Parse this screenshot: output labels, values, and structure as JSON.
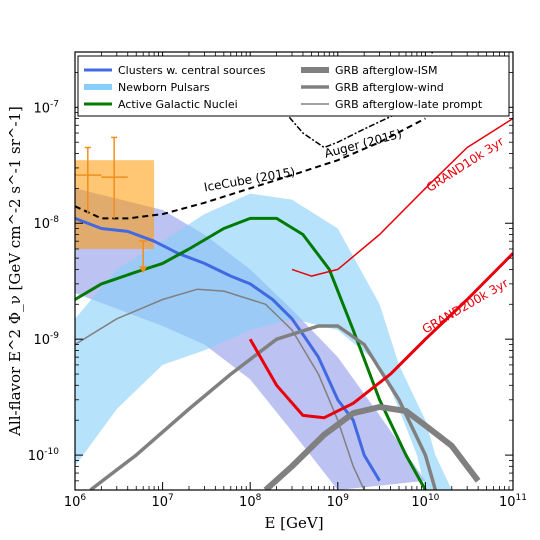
{
  "chart_data": {
    "type": "line",
    "xlabel": "E [GeV]",
    "ylabel": "All-flavor E^2 Φ_ν [GeV cm^-2 s^-1 sr^-1]",
    "x_scale": "log",
    "y_scale": "log",
    "xlim": [
      1000000,
      100000000000
    ],
    "ylim": [
      5e-11,
      3e-07
    ],
    "legend_position": "top",
    "x_tick_labels": [
      "10^6",
      "10^7",
      "10^8",
      "10^9",
      "10^10",
      "10^11"
    ],
    "y_tick_labels": [
      "10^-10",
      "10^-9",
      "10^-8",
      "10^-7"
    ],
    "legend": [
      {
        "name": "Clusters w. central sources",
        "color": "#4169e1",
        "width": 3
      },
      {
        "name": "Newborn Pulsars",
        "color": "#87cefa",
        "width": 6
      },
      {
        "name": "Active Galactic Nuclei",
        "color": "#007a00",
        "width": 3
      },
      {
        "name": "GRB afterglow-ISM",
        "color": "#808080",
        "width": 6
      },
      {
        "name": "GRB afterglow-wind",
        "color": "#808080",
        "width": 3.5
      },
      {
        "name": "GRB afterglow-late prompt",
        "color": "#808080",
        "width": 1.5
      }
    ],
    "bands": [
      {
        "name": "Clusters w. central sources",
        "color": "#6a78e0",
        "opacity": 0.45,
        "upper": [
          [
            1000000,
            2e-08
          ],
          [
            10000000,
            1.3e-08
          ],
          [
            30000000,
            8e-09
          ],
          [
            100000000,
            4e-09
          ],
          [
            300000000,
            1.8e-09
          ],
          [
            1000000000,
            7e-10
          ],
          [
            3000000000,
            2.2e-10
          ],
          [
            10000000000,
            6e-11
          ]
        ],
        "lower": [
          [
            1000000,
            2.5e-09
          ],
          [
            10000000,
            1.3e-09
          ],
          [
            30000000,
            9e-10
          ],
          [
            100000000,
            4.5e-10
          ],
          [
            300000000,
            1.6e-10
          ],
          [
            1000000000,
            5e-11
          ]
        ]
      },
      {
        "name": "Newborn Pulsars",
        "color": "#87cefa",
        "opacity": 0.6,
        "upper": [
          [
            1000000,
            1.5e-09
          ],
          [
            3000000,
            4e-09
          ],
          [
            10000000,
            7e-09
          ],
          [
            30000000,
            1.2e-08
          ],
          [
            100000000,
            1.8e-08
          ],
          [
            300000000,
            1.6e-08
          ],
          [
            1000000000,
            9e-09
          ],
          [
            3000000000,
            2e-09
          ],
          [
            5000000000,
            6e-10
          ],
          [
            10000000000,
            2e-10
          ],
          [
            13000000000,
            1e-10
          ],
          [
            20000000000,
            5e-11
          ]
        ],
        "lower": [
          [
            1000000,
            8e-11
          ],
          [
            3000000,
            2.5e-10
          ],
          [
            10000000,
            6e-10
          ],
          [
            30000000,
            8e-10
          ],
          [
            100000000,
            1.2e-09
          ],
          [
            300000000,
            1.5e-09
          ],
          [
            1000000000,
            1.2e-09
          ],
          [
            3000000000,
            6e-10
          ],
          [
            5000000000,
            2.5e-10
          ],
          [
            8000000000,
            1e-10
          ],
          [
            10000000000,
            5e-11
          ]
        ]
      }
    ],
    "series": [
      {
        "name": "Clusters w. central sources",
        "color": "#4169e1",
        "width": 3,
        "points": [
          [
            1000000,
            1.1e-08
          ],
          [
            2000000,
            9e-09
          ],
          [
            4000000,
            8.5e-09
          ],
          [
            8000000,
            7e-09
          ],
          [
            15000000,
            5.5e-09
          ],
          [
            30000000,
            4.5e-09
          ],
          [
            60000000,
            3.5e-09
          ],
          [
            100000000,
            3e-09
          ],
          [
            180000000,
            2.2e-09
          ],
          [
            300000000,
            1.5e-09
          ],
          [
            400000000,
            1.1e-09
          ],
          [
            600000000,
            7e-10
          ],
          [
            1000000000,
            3e-10
          ],
          [
            1500000000,
            2e-10
          ],
          [
            2000000000,
            1e-10
          ],
          [
            3000000000,
            6e-11
          ]
        ]
      },
      {
        "name": "Active Galactic Nuclei",
        "color": "#007a00",
        "width": 3,
        "points": [
          [
            1000000,
            2.2e-09
          ],
          [
            2000000,
            3e-09
          ],
          [
            5000000,
            3.8e-09
          ],
          [
            10000000,
            4.5e-09
          ],
          [
            20000000,
            6e-09
          ],
          [
            50000000,
            9e-09
          ],
          [
            100000000,
            1.1e-08
          ],
          [
            200000000,
            1.1e-08
          ],
          [
            400000000,
            8e-09
          ],
          [
            800000000,
            4e-09
          ],
          [
            1500000000,
            1.2e-09
          ],
          [
            3000000000,
            3e-10
          ],
          [
            6000000000,
            1e-10
          ],
          [
            10000000000,
            5e-11
          ]
        ]
      },
      {
        "name": "GRB afterglow-ISM",
        "color": "#808080",
        "width": 6,
        "points": [
          [
            150000000,
            5e-11
          ],
          [
            300000000,
            8e-11
          ],
          [
            700000000,
            1.5e-10
          ],
          [
            1500000000,
            2.3e-10
          ],
          [
            3000000000,
            2.6e-10
          ],
          [
            6000000000,
            2.4e-10
          ],
          [
            10000000000,
            1.8e-10
          ],
          [
            20000000000,
            1.2e-10
          ],
          [
            40000000000,
            6e-11
          ]
        ]
      },
      {
        "name": "GRB afterglow-wind",
        "color": "#808080",
        "width": 3.5,
        "points": [
          [
            1500000,
            5e-11
          ],
          [
            5000000,
            1e-10
          ],
          [
            20000000,
            2.5e-10
          ],
          [
            60000000,
            5e-10
          ],
          [
            200000000,
            1e-09
          ],
          [
            600000000,
            1.3e-09
          ],
          [
            1000000000,
            1.3e-09
          ],
          [
            2000000000,
            9e-10
          ],
          [
            5000000000,
            3e-10
          ],
          [
            10000000000,
            1e-10
          ],
          [
            13000000000,
            5e-11
          ]
        ]
      },
      {
        "name": "GRB afterglow-late prompt",
        "color": "#808080",
        "width": 1.5,
        "points": [
          [
            1000000,
            9e-10
          ],
          [
            3000000,
            1.5e-09
          ],
          [
            10000000,
            2.2e-09
          ],
          [
            25000000,
            2.7e-09
          ],
          [
            50000000,
            2.6e-09
          ],
          [
            150000000,
            2e-09
          ],
          [
            300000000,
            1.2e-09
          ],
          [
            600000000,
            5e-10
          ],
          [
            1000000000,
            2e-10
          ],
          [
            1500000000,
            8e-11
          ],
          [
            2000000000,
            5e-11
          ]
        ]
      },
      {
        "name": "GRAND10k 3yr",
        "color": "#e8000b",
        "width": 1.5,
        "points": [
          [
            300000000,
            4e-09
          ],
          [
            500000000,
            3.5e-09
          ],
          [
            1000000000,
            4e-09
          ],
          [
            3000000000,
            8e-09
          ],
          [
            10000000000,
            2e-08
          ],
          [
            30000000000,
            4.5e-08
          ],
          [
            100000000000,
            8e-08
          ]
        ]
      },
      {
        "name": "GRAND200k 3yr",
        "color": "#e8000b",
        "width": 3,
        "points": [
          [
            100000000,
            1e-09
          ],
          [
            200000000,
            4e-10
          ],
          [
            400000000,
            2.2e-10
          ],
          [
            700000000,
            2.1e-10
          ],
          [
            1500000000,
            2.8e-10
          ],
          [
            4000000000,
            5e-10
          ],
          [
            10000000000,
            1e-09
          ],
          [
            30000000000,
            2.2e-09
          ],
          [
            100000000000,
            5.5e-09
          ]
        ]
      },
      {
        "name": "IceCube (2015)",
        "color": "#000000",
        "width": 2,
        "dash": "6,4",
        "points": [
          [
            1000000,
            1.4e-08
          ],
          [
            2000000,
            1.1e-08
          ],
          [
            4000000,
            1.1e-08
          ],
          [
            10000000,
            1.2e-08
          ],
          [
            30000000,
            1.5e-08
          ],
          [
            100000000,
            2e-08
          ],
          [
            300000000,
            2.6e-08
          ],
          [
            1000000000,
            3.5e-08
          ],
          [
            3000000000,
            5e-08
          ],
          [
            10000000000,
            8e-08
          ]
        ]
      },
      {
        "name": "Auger (2015)",
        "color": "#000000",
        "width": 1.5,
        "dash": "2,2,6,2",
        "points": [
          [
            100000000,
            1.6e-07
          ],
          [
            200000000,
            1.1e-07
          ],
          [
            400000000,
            6e-08
          ],
          [
            700000000,
            4.5e-08
          ],
          [
            1000000000,
            5e-08
          ],
          [
            2000000000,
            6.5e-08
          ],
          [
            5000000000,
            9e-08
          ],
          [
            10000000000,
            1.5e-07
          ],
          [
            12000000000,
            3e-07
          ]
        ]
      }
    ],
    "annotations": [
      {
        "text": "IceCube (2015)",
        "x": 100000000,
        "y": 2.2e-08,
        "angle": -10,
        "color": "#000000"
      },
      {
        "text": "Auger (2015)",
        "x": 2000000000,
        "y": 4.5e-08,
        "angle": -15,
        "color": "#000000"
      },
      {
        "text": "GRAND10k 3yr",
        "x": 30000000000,
        "y": 3e-08,
        "angle": -33,
        "color": "#e8000b"
      },
      {
        "text": "GRAND200k 3yr",
        "x": 30000000000,
        "y": 1.8e-09,
        "angle": -30,
        "color": "#e8000b"
      }
    ],
    "auger_box": {
      "x": [
        1000000,
        8000000
      ],
      "y": [
        6e-09,
        3.5e-08
      ],
      "color": "#ff9900"
    },
    "auger_points": [
      {
        "x": 1400000,
        "y": 2.6e-08,
        "ylo": 1.2e-08,
        "yhi": 4.5e-08,
        "xlo": 1000000,
        "xhi": 2000000
      },
      {
        "x": 2800000,
        "y": 2.5e-08,
        "ylo": 1.1e-08,
        "yhi": 5.5e-08,
        "xlo": 2000000,
        "xhi": 4000000
      },
      {
        "x": 6000000,
        "y": 3.7e-09,
        "upper_limit": true
      }
    ]
  }
}
